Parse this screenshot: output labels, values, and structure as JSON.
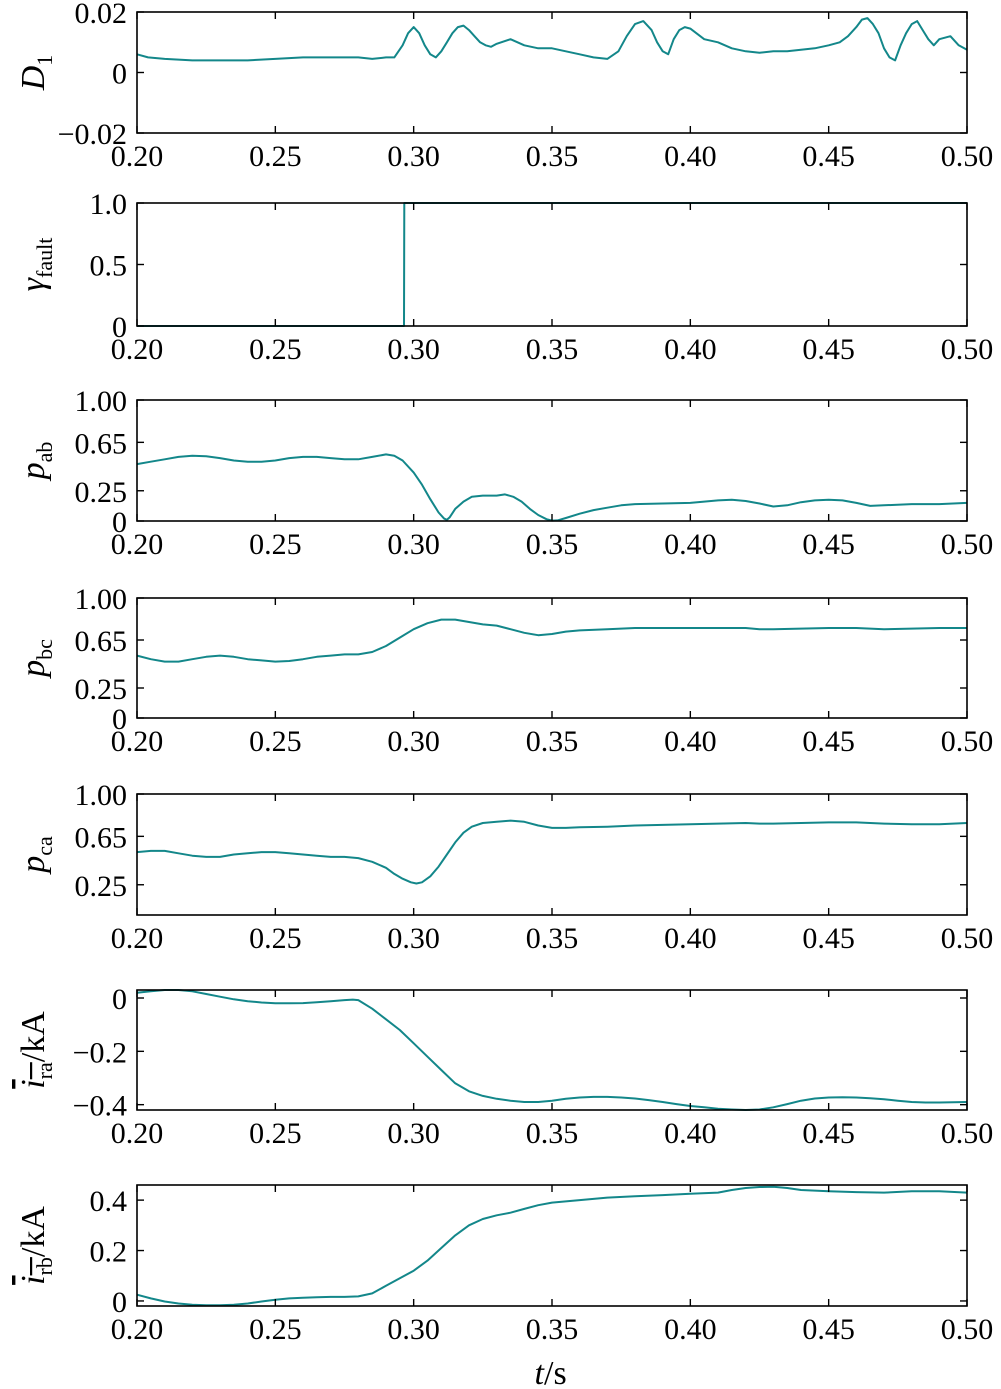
{
  "style": {
    "line_color": "#13878a",
    "axis_color": "#000000"
  },
  "x_axis": {
    "label_var": "t",
    "label_unit": "/s",
    "range": [
      0.2,
      0.5
    ],
    "ticks": [
      "0.20",
      "0.25",
      "0.30",
      "0.35",
      "0.40",
      "0.45",
      "0.50"
    ]
  },
  "chart_data": [
    {
      "type": "line",
      "ylabel": {
        "main": "D",
        "sub": "1",
        "unit": ""
      },
      "ylim": [
        -0.02,
        0.02
      ],
      "yticks": [
        {
          "v": 0.02,
          "label": "0.02"
        },
        {
          "v": 0,
          "label": "0"
        },
        {
          "v": -0.02,
          "label": "−0.02"
        }
      ],
      "series": [
        {
          "x": [
            0.2,
            0.204,
            0.21,
            0.22,
            0.23,
            0.24,
            0.25,
            0.26,
            0.27,
            0.28,
            0.285,
            0.29,
            0.293,
            0.296,
            0.298,
            0.3,
            0.302,
            0.304,
            0.306,
            0.308,
            0.31,
            0.312,
            0.314,
            0.316,
            0.318,
            0.32,
            0.322,
            0.324,
            0.326,
            0.328,
            0.33,
            0.335,
            0.34,
            0.345,
            0.35,
            0.355,
            0.36,
            0.365,
            0.37,
            0.374,
            0.377,
            0.38,
            0.383,
            0.386,
            0.388,
            0.39,
            0.392,
            0.394,
            0.396,
            0.398,
            0.4,
            0.405,
            0.41,
            0.415,
            0.42,
            0.425,
            0.43,
            0.435,
            0.44,
            0.445,
            0.45,
            0.454,
            0.457,
            0.46,
            0.462,
            0.464,
            0.466,
            0.468,
            0.47,
            0.472,
            0.474,
            0.476,
            0.478,
            0.48,
            0.482,
            0.484,
            0.486,
            0.488,
            0.49,
            0.494,
            0.497,
            0.5
          ],
          "y": [
            0.006,
            0.005,
            0.0045,
            0.004,
            0.004,
            0.004,
            0.0045,
            0.005,
            0.005,
            0.005,
            0.0045,
            0.005,
            0.005,
            0.009,
            0.013,
            0.015,
            0.013,
            0.009,
            0.006,
            0.005,
            0.007,
            0.01,
            0.013,
            0.015,
            0.0155,
            0.014,
            0.012,
            0.01,
            0.009,
            0.0085,
            0.0095,
            0.011,
            0.009,
            0.008,
            0.008,
            0.007,
            0.006,
            0.005,
            0.0045,
            0.007,
            0.012,
            0.016,
            0.017,
            0.014,
            0.01,
            0.007,
            0.006,
            0.011,
            0.014,
            0.015,
            0.0145,
            0.011,
            0.01,
            0.008,
            0.007,
            0.0065,
            0.007,
            0.007,
            0.0075,
            0.008,
            0.009,
            0.01,
            0.012,
            0.015,
            0.0175,
            0.018,
            0.016,
            0.013,
            0.008,
            0.005,
            0.004,
            0.009,
            0.013,
            0.016,
            0.017,
            0.014,
            0.011,
            0.009,
            0.011,
            0.012,
            0.009,
            0.0075
          ]
        }
      ]
    },
    {
      "type": "line",
      "ylabel": {
        "main": "γ",
        "sub": "fault",
        "unit": ""
      },
      "ylim": [
        0,
        1
      ],
      "yticks": [
        {
          "v": 1,
          "label": "1.0"
        },
        {
          "v": 0.5,
          "label": "0.5"
        },
        {
          "v": 0,
          "label": "0"
        }
      ],
      "series": [
        {
          "x": [
            0.2,
            0.2965,
            0.2966,
            0.5
          ],
          "y": [
            0,
            0,
            1,
            1
          ]
        }
      ]
    },
    {
      "type": "line",
      "ylabel": {
        "main": "p",
        "sub": "ab",
        "unit": ""
      },
      "ylim": [
        0,
        1
      ],
      "yticks": [
        {
          "v": 1,
          "label": "1.00"
        },
        {
          "v": 0.65,
          "label": "0.65"
        },
        {
          "v": 0.25,
          "label": "0.25"
        },
        {
          "v": 0,
          "label": "0"
        }
      ],
      "series": [
        {
          "x": [
            0.2,
            0.205,
            0.21,
            0.215,
            0.22,
            0.225,
            0.23,
            0.235,
            0.24,
            0.245,
            0.25,
            0.255,
            0.26,
            0.265,
            0.27,
            0.275,
            0.28,
            0.285,
            0.29,
            0.293,
            0.296,
            0.3,
            0.303,
            0.306,
            0.309,
            0.311,
            0.312,
            0.313,
            0.315,
            0.318,
            0.321,
            0.325,
            0.33,
            0.333,
            0.336,
            0.339,
            0.342,
            0.345,
            0.348,
            0.35,
            0.352,
            0.355,
            0.36,
            0.365,
            0.37,
            0.375,
            0.38,
            0.39,
            0.4,
            0.405,
            0.41,
            0.415,
            0.42,
            0.425,
            0.43,
            0.435,
            0.44,
            0.445,
            0.45,
            0.455,
            0.46,
            0.465,
            0.47,
            0.48,
            0.49,
            0.5
          ],
          "y": [
            0.47,
            0.49,
            0.51,
            0.53,
            0.54,
            0.535,
            0.52,
            0.5,
            0.49,
            0.49,
            0.5,
            0.52,
            0.53,
            0.53,
            0.52,
            0.51,
            0.51,
            0.53,
            0.55,
            0.54,
            0.5,
            0.4,
            0.3,
            0.18,
            0.07,
            0.02,
            0.01,
            0.03,
            0.1,
            0.16,
            0.2,
            0.21,
            0.21,
            0.22,
            0.2,
            0.16,
            0.1,
            0.05,
            0.015,
            0.003,
            0.005,
            0.025,
            0.06,
            0.09,
            0.11,
            0.13,
            0.14,
            0.145,
            0.15,
            0.16,
            0.17,
            0.175,
            0.165,
            0.145,
            0.12,
            0.13,
            0.155,
            0.17,
            0.175,
            0.17,
            0.15,
            0.125,
            0.13,
            0.14,
            0.14,
            0.15
          ]
        }
      ]
    },
    {
      "type": "line",
      "ylabel": {
        "main": "p",
        "sub": "bc",
        "unit": ""
      },
      "ylim": [
        0,
        1
      ],
      "yticks": [
        {
          "v": 1,
          "label": "1.00"
        },
        {
          "v": 0.65,
          "label": "0.65"
        },
        {
          "v": 0.25,
          "label": "0.25"
        },
        {
          "v": 0,
          "label": "0"
        }
      ],
      "series": [
        {
          "x": [
            0.2,
            0.205,
            0.21,
            0.215,
            0.22,
            0.225,
            0.23,
            0.235,
            0.24,
            0.245,
            0.25,
            0.255,
            0.26,
            0.265,
            0.27,
            0.275,
            0.28,
            0.285,
            0.29,
            0.295,
            0.3,
            0.305,
            0.31,
            0.315,
            0.32,
            0.325,
            0.33,
            0.335,
            0.34,
            0.345,
            0.35,
            0.355,
            0.36,
            0.37,
            0.38,
            0.39,
            0.4,
            0.41,
            0.42,
            0.425,
            0.43,
            0.44,
            0.45,
            0.46,
            0.47,
            0.48,
            0.49,
            0.5
          ],
          "y": [
            0.52,
            0.49,
            0.47,
            0.47,
            0.49,
            0.51,
            0.52,
            0.51,
            0.49,
            0.48,
            0.47,
            0.475,
            0.49,
            0.51,
            0.52,
            0.53,
            0.53,
            0.55,
            0.6,
            0.67,
            0.74,
            0.79,
            0.82,
            0.82,
            0.8,
            0.78,
            0.77,
            0.74,
            0.71,
            0.69,
            0.7,
            0.72,
            0.73,
            0.74,
            0.75,
            0.75,
            0.75,
            0.75,
            0.75,
            0.74,
            0.74,
            0.745,
            0.75,
            0.75,
            0.74,
            0.745,
            0.75,
            0.75
          ]
        }
      ]
    },
    {
      "type": "line",
      "ylabel": {
        "main": "p",
        "sub": "ca",
        "unit": ""
      },
      "ylim": [
        0,
        1
      ],
      "yticks": [
        {
          "v": 1,
          "label": "1.00"
        },
        {
          "v": 0.65,
          "label": "0.65"
        },
        {
          "v": 0.25,
          "label": "0.25"
        }
      ],
      "series": [
        {
          "x": [
            0.2,
            0.205,
            0.21,
            0.215,
            0.22,
            0.225,
            0.23,
            0.235,
            0.24,
            0.245,
            0.25,
            0.255,
            0.26,
            0.265,
            0.27,
            0.275,
            0.28,
            0.285,
            0.29,
            0.293,
            0.296,
            0.299,
            0.301,
            0.303,
            0.306,
            0.309,
            0.312,
            0.315,
            0.318,
            0.321,
            0.325,
            0.33,
            0.335,
            0.34,
            0.345,
            0.35,
            0.355,
            0.36,
            0.37,
            0.38,
            0.39,
            0.4,
            0.41,
            0.42,
            0.425,
            0.43,
            0.44,
            0.45,
            0.46,
            0.47,
            0.48,
            0.49,
            0.5
          ],
          "y": [
            0.52,
            0.53,
            0.53,
            0.51,
            0.49,
            0.48,
            0.48,
            0.5,
            0.51,
            0.52,
            0.52,
            0.51,
            0.5,
            0.49,
            0.48,
            0.48,
            0.47,
            0.44,
            0.39,
            0.34,
            0.3,
            0.27,
            0.26,
            0.27,
            0.32,
            0.4,
            0.5,
            0.6,
            0.68,
            0.73,
            0.76,
            0.77,
            0.78,
            0.77,
            0.74,
            0.72,
            0.72,
            0.725,
            0.73,
            0.74,
            0.745,
            0.75,
            0.755,
            0.76,
            0.755,
            0.755,
            0.76,
            0.765,
            0.765,
            0.755,
            0.75,
            0.75,
            0.76
          ]
        }
      ]
    },
    {
      "type": "line",
      "ylabel": {
        "main": "i",
        "sub": "ra",
        "unit": "/kA"
      },
      "ylim": [
        -0.42,
        0.03
      ],
      "yticks": [
        {
          "v": 0,
          "label": "0"
        },
        {
          "v": -0.2,
          "label": "−0.2"
        },
        {
          "v": -0.4,
          "label": "−0.4"
        }
      ],
      "series": [
        {
          "x": [
            0.2,
            0.205,
            0.21,
            0.215,
            0.22,
            0.225,
            0.23,
            0.235,
            0.24,
            0.245,
            0.25,
            0.255,
            0.26,
            0.265,
            0.27,
            0.275,
            0.278,
            0.28,
            0.285,
            0.29,
            0.295,
            0.3,
            0.305,
            0.31,
            0.315,
            0.32,
            0.325,
            0.33,
            0.335,
            0.34,
            0.345,
            0.35,
            0.355,
            0.36,
            0.365,
            0.37,
            0.375,
            0.38,
            0.385,
            0.39,
            0.395,
            0.4,
            0.405,
            0.41,
            0.415,
            0.42,
            0.425,
            0.43,
            0.435,
            0.44,
            0.445,
            0.45,
            0.455,
            0.46,
            0.465,
            0.47,
            0.475,
            0.48,
            0.485,
            0.49,
            0.495,
            0.5
          ],
          "y": [
            0.02,
            0.025,
            0.03,
            0.03,
            0.025,
            0.015,
            0.005,
            -0.005,
            -0.012,
            -0.017,
            -0.02,
            -0.02,
            -0.019,
            -0.016,
            -0.012,
            -0.008,
            -0.006,
            -0.008,
            -0.04,
            -0.08,
            -0.12,
            -0.17,
            -0.22,
            -0.27,
            -0.32,
            -0.35,
            -0.367,
            -0.378,
            -0.385,
            -0.39,
            -0.39,
            -0.385,
            -0.378,
            -0.373,
            -0.371,
            -0.371,
            -0.373,
            -0.377,
            -0.383,
            -0.39,
            -0.398,
            -0.405,
            -0.41,
            -0.415,
            -0.418,
            -0.42,
            -0.418,
            -0.41,
            -0.398,
            -0.385,
            -0.377,
            -0.373,
            -0.372,
            -0.373,
            -0.376,
            -0.38,
            -0.385,
            -0.39,
            -0.392,
            -0.392,
            -0.391,
            -0.39
          ]
        }
      ]
    },
    {
      "type": "line",
      "ylabel": {
        "main": "i",
        "sub": "rb",
        "unit": "/kA"
      },
      "ylim": [
        -0.02,
        0.46
      ],
      "yticks": [
        {
          "v": 0.4,
          "label": "0.4"
        },
        {
          "v": 0.2,
          "label": "0.2"
        },
        {
          "v": 0,
          "label": "0"
        }
      ],
      "series": [
        {
          "x": [
            0.2,
            0.205,
            0.21,
            0.215,
            0.22,
            0.225,
            0.23,
            0.235,
            0.24,
            0.245,
            0.25,
            0.255,
            0.26,
            0.265,
            0.27,
            0.275,
            0.28,
            0.285,
            0.29,
            0.295,
            0.3,
            0.305,
            0.31,
            0.315,
            0.32,
            0.325,
            0.33,
            0.335,
            0.34,
            0.345,
            0.35,
            0.355,
            0.36,
            0.37,
            0.38,
            0.39,
            0.4,
            0.41,
            0.415,
            0.42,
            0.425,
            0.43,
            0.435,
            0.44,
            0.45,
            0.46,
            0.47,
            0.48,
            0.49,
            0.5
          ],
          "y": [
            0.025,
            0.01,
            -0.002,
            -0.01,
            -0.015,
            -0.017,
            -0.017,
            -0.015,
            -0.01,
            -0.002,
            0.005,
            0.01,
            0.013,
            0.015,
            0.016,
            0.016,
            0.018,
            0.03,
            0.06,
            0.09,
            0.12,
            0.16,
            0.21,
            0.26,
            0.3,
            0.325,
            0.34,
            0.35,
            0.365,
            0.38,
            0.39,
            0.395,
            0.4,
            0.41,
            0.415,
            0.42,
            0.425,
            0.43,
            0.44,
            0.448,
            0.452,
            0.453,
            0.448,
            0.44,
            0.435,
            0.432,
            0.43,
            0.435,
            0.435,
            0.43
          ]
        }
      ]
    }
  ]
}
